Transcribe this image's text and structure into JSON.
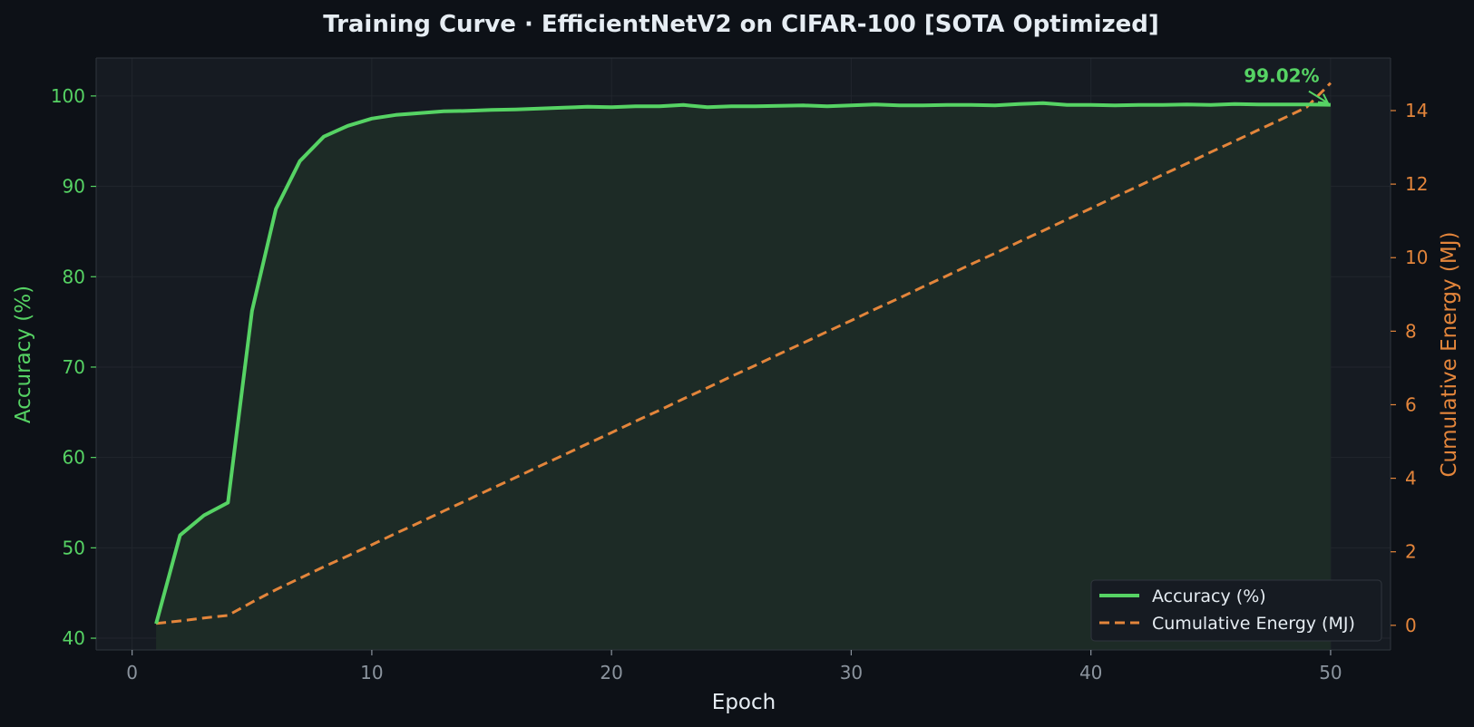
{
  "colors": {
    "background": "#0d1117",
    "plot_background": "#161b22",
    "grid": "#21262d",
    "spine": "#30363d",
    "accuracy": "#56d364",
    "energy": "#e3853b",
    "accuracy_fill": "#1d2b26",
    "x_tick": "#8b949e",
    "title": "#e6edf3",
    "legend_bg": "#161b22"
  },
  "chart_data": {
    "type": "line",
    "title": "Training Curve  ·  EfficientNetV2 on CIFAR-100  [SOTA Optimized]",
    "xlabel": "Epoch",
    "ylabel": "Accuracy (%)",
    "y2label": "Cumulative Energy (MJ)",
    "xlim": [
      -1.5,
      52.5
    ],
    "ylim": [
      38.7,
      104.2
    ],
    "y2lim": [
      -0.67,
      15.43
    ],
    "xticks": [
      0,
      10,
      20,
      30,
      40,
      50
    ],
    "yticks": [
      40,
      50,
      60,
      70,
      80,
      90,
      100
    ],
    "y2ticks": [
      0,
      2,
      4,
      6,
      8,
      10,
      12,
      14
    ],
    "grid": true,
    "legend_position": "lower-right",
    "x": [
      1,
      2,
      3,
      4,
      5,
      6,
      7,
      8,
      9,
      10,
      11,
      12,
      13,
      14,
      15,
      16,
      17,
      18,
      19,
      20,
      21,
      22,
      23,
      24,
      25,
      26,
      27,
      28,
      29,
      30,
      31,
      32,
      33,
      34,
      35,
      36,
      37,
      38,
      39,
      40,
      41,
      42,
      43,
      44,
      45,
      46,
      47,
      48,
      49,
      50
    ],
    "series": [
      {
        "name": "Accuracy (%)",
        "axis": "left",
        "style": "solid",
        "fill": true,
        "values": [
          41.6,
          51.4,
          53.6,
          55.0,
          76.2,
          87.5,
          92.8,
          95.5,
          96.7,
          97.5,
          97.9,
          98.1,
          98.3,
          98.35,
          98.45,
          98.5,
          98.6,
          98.7,
          98.8,
          98.75,
          98.85,
          98.85,
          99.0,
          98.75,
          98.85,
          98.85,
          98.9,
          98.95,
          98.85,
          98.95,
          99.05,
          98.95,
          98.95,
          99.0,
          99.0,
          98.95,
          99.1,
          99.2,
          99.0,
          99.0,
          98.95,
          99.0,
          99.0,
          99.05,
          99.0,
          99.1,
          99.05,
          99.05,
          99.05,
          99.02
        ]
      },
      {
        "name": "Cumulative Energy (MJ)",
        "axis": "right",
        "style": "dashed",
        "fill": false,
        "values": [
          0.05,
          0.12,
          0.2,
          0.27,
          0.63,
          0.97,
          1.28,
          1.59,
          1.89,
          2.19,
          2.5,
          2.8,
          3.11,
          3.41,
          3.72,
          4.02,
          4.33,
          4.63,
          4.94,
          5.24,
          5.55,
          5.85,
          6.16,
          6.46,
          6.77,
          7.07,
          7.38,
          7.68,
          7.99,
          8.29,
          8.6,
          8.9,
          9.21,
          9.51,
          9.82,
          10.12,
          10.43,
          10.73,
          11.04,
          11.34,
          11.65,
          11.95,
          12.26,
          12.56,
          12.87,
          13.17,
          13.48,
          13.78,
          14.09,
          14.75
        ]
      }
    ],
    "annotation": {
      "text": "99.02%",
      "x": 50,
      "y": 99.02
    }
  }
}
